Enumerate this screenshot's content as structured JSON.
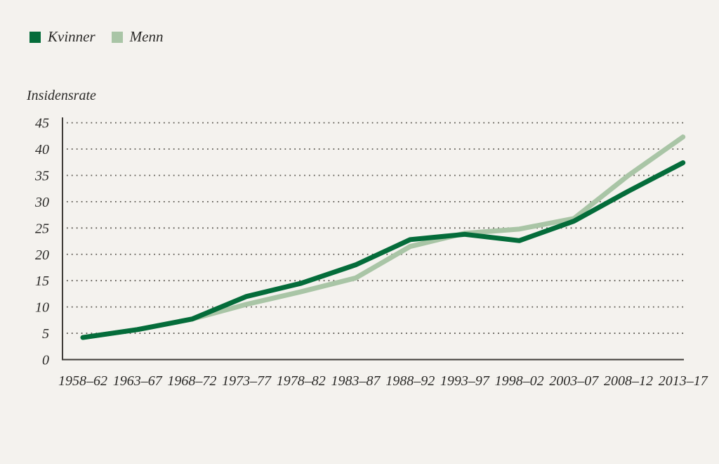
{
  "chart_data": {
    "type": "line",
    "title": "",
    "xlabel": "",
    "ylabel": "Insidensrate",
    "categories": [
      "1958–62",
      "1963–67",
      "1968–72",
      "1973–77",
      "1978–82",
      "1983–87",
      "1988–92",
      "1993–97",
      "1998–02",
      "2003–07",
      "2008–12",
      "2013–17"
    ],
    "series": [
      {
        "name": "Kvinner",
        "color": "#046c3a",
        "values": [
          4.2,
          5.7,
          7.7,
          12.0,
          14.5,
          18.0,
          22.8,
          23.8,
          22.6,
          26.3,
          32.0,
          37.4
        ]
      },
      {
        "name": "Menn",
        "color": "#a9c5a6",
        "values": [
          4.2,
          5.7,
          7.7,
          10.5,
          12.9,
          15.5,
          21.5,
          24.0,
          24.8,
          26.8,
          35.0,
          42.3
        ]
      }
    ],
    "ylim": [
      0,
      45
    ],
    "yticks": [
      0,
      5,
      10,
      15,
      20,
      25,
      30,
      35,
      40,
      45
    ],
    "grid": "horizontal-dotted",
    "legend_position": "top-left",
    "background_color": "#f4f2ee",
    "axis_color": "#3f3c38",
    "grid_color": "#56524b",
    "text_color": "#2b2a28"
  }
}
